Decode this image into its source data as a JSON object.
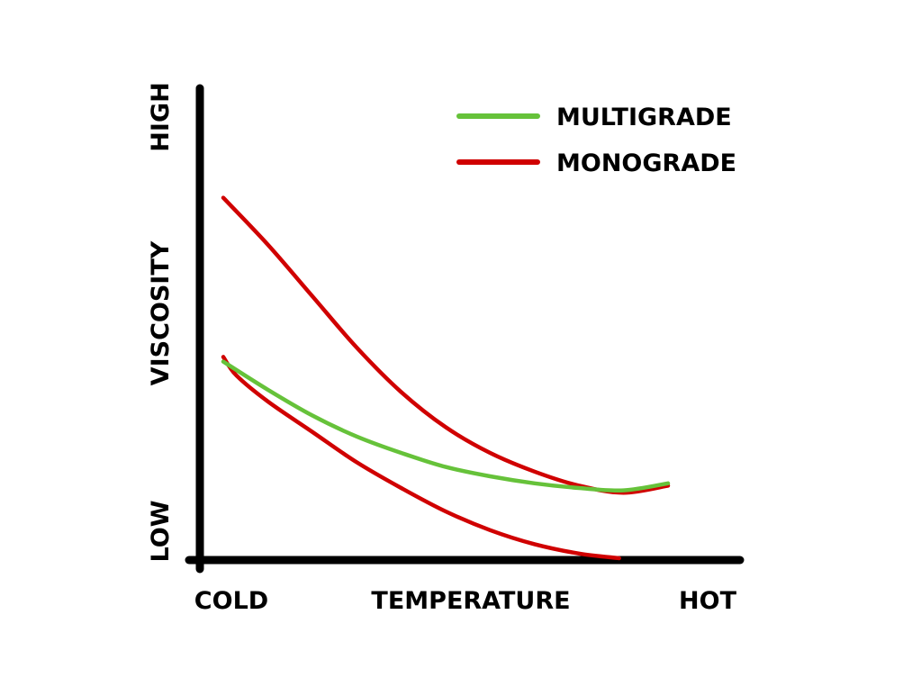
{
  "chart_data": {
    "type": "line",
    "title": "",
    "xlabel": "TEMPERATURE",
    "ylabel": "VISCOSITY",
    "x_tick_labels": {
      "start": "COLD",
      "end": "HOT"
    },
    "y_tick_labels": {
      "start": "LOW",
      "end": "HIGH"
    },
    "xlim": [
      0,
      10
    ],
    "ylim": [
      0,
      10
    ],
    "grid": false,
    "legend_position": "top-right",
    "series": [
      {
        "name": "MULTIGRADE",
        "color": "#66c23a",
        "x": [
          0,
          1,
          2,
          3,
          4,
          5,
          6,
          7,
          8,
          9,
          10
        ],
        "y": [
          4.2,
          3.6,
          3.05,
          2.6,
          2.25,
          1.95,
          1.75,
          1.6,
          1.5,
          1.45,
          1.6
        ]
      },
      {
        "name": "MONOGRADE",
        "color": "#d00000",
        "x": [
          0,
          1,
          2,
          3,
          4,
          5,
          6,
          7,
          8,
          9,
          10
        ],
        "y": [
          7.7,
          6.7,
          5.6,
          4.5,
          3.55,
          2.8,
          2.25,
          1.85,
          1.55,
          1.4,
          1.55
        ]
      },
      {
        "name": "",
        "color": "#d00000",
        "x": [
          0,
          0.3,
          1,
          2,
          3,
          4,
          5,
          6,
          7,
          8,
          8.9
        ],
        "y": [
          4.3,
          3.9,
          3.35,
          2.7,
          2.05,
          1.5,
          1.0,
          0.6,
          0.3,
          0.1,
          0.0
        ]
      }
    ]
  }
}
